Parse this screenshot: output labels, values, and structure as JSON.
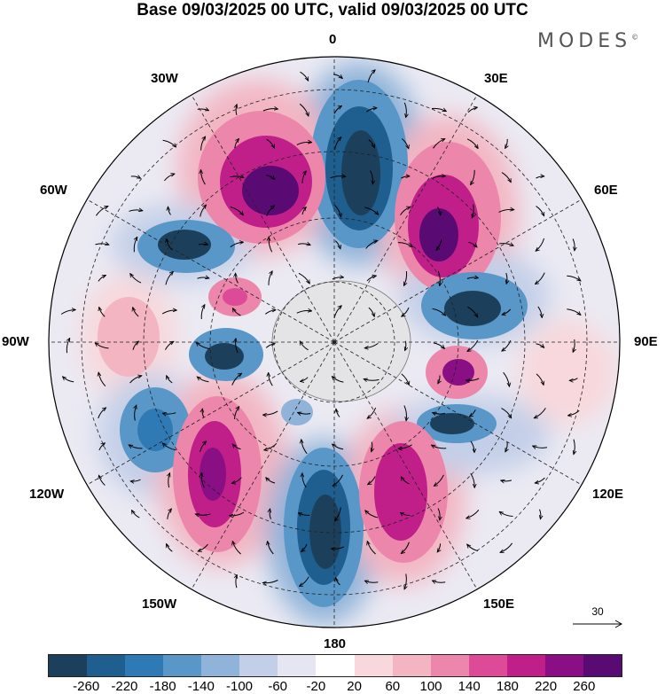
{
  "title": "Base 09/03/2025 00 UTC, valid 09/03/2025 00 UTC",
  "brand": "MODES",
  "brand_mark": "©",
  "longitude_labels": {
    "top": "0",
    "deg30e": "30E",
    "deg60e": "60E",
    "deg90e": "90E",
    "deg120e": "120E",
    "deg150e": "150E",
    "bottom": "180",
    "deg150w": "150W",
    "deg120w": "120W",
    "deg90w": "90W",
    "deg60w": "60W",
    "deg30w": "30W"
  },
  "reference_vector": {
    "label": "30"
  },
  "colorbar": {
    "colors": [
      "#1c3f5c",
      "#1f5f8f",
      "#2f7ab4",
      "#5897c8",
      "#8fb3d9",
      "#c3cfe8",
      "#e6e6f2",
      "#ffffff",
      "#f8d8dc",
      "#f3b5c2",
      "#ec86aa",
      "#dd4a97",
      "#c01f8a",
      "#8a0e84",
      "#5a0a73"
    ],
    "labels": [
      "-260",
      "-220",
      "-180",
      "-140",
      "-100",
      "-60",
      "-20",
      "20",
      "60",
      "100",
      "140",
      "180",
      "220",
      "260"
    ]
  },
  "map_data": {
    "projection": "south-polar-stereographic",
    "field": "anomaly",
    "anomaly_centers": [
      {
        "lon": 0,
        "sign": "negative",
        "level": -260
      },
      {
        "lon": -25,
        "sign": "positive",
        "level": 260
      },
      {
        "lon": 35,
        "sign": "positive",
        "level": 260
      },
      {
        "lon": -62,
        "sign": "negative",
        "level": -220
      },
      {
        "lon": 65,
        "sign": "negative",
        "level": -220
      },
      {
        "lon": -85,
        "sign": "positive",
        "level": 140
      },
      {
        "lon": -95,
        "sign": "negative",
        "level": -220
      },
      {
        "lon": 100,
        "sign": "positive",
        "level": 220
      },
      {
        "lon": -120,
        "sign": "negative",
        "level": -180
      },
      {
        "lon": 120,
        "sign": "negative",
        "level": -220
      },
      {
        "lon": -145,
        "sign": "positive",
        "level": 260
      },
      {
        "lon": 165,
        "sign": "positive",
        "level": 220
      },
      {
        "lon": 180,
        "sign": "negative",
        "level": -260
      }
    ]
  }
}
